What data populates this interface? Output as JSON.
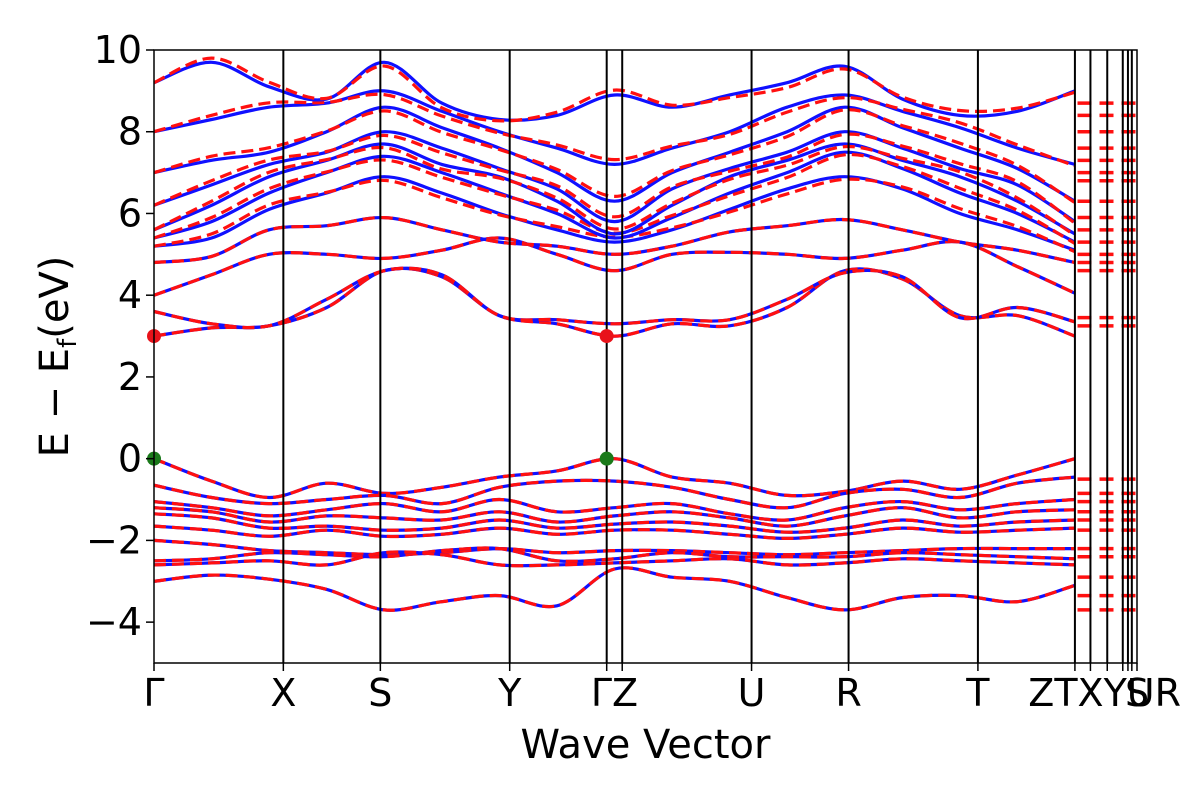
{
  "chart_data": {
    "type": "line",
    "title": "",
    "xlabel": "Wave Vector",
    "ylabel": "E − E",
    "ylabel_sub": "f",
    "ylabel_unit": "(eV)",
    "ylim": [
      -5,
      10
    ],
    "yticks": [
      -4,
      -2,
      0,
      2,
      4,
      6,
      8,
      10
    ],
    "ytick_labels": [
      "−4",
      "−2",
      "0",
      "2",
      "4",
      "6",
      "8",
      "10"
    ],
    "xlim": [
      0,
      7.6
    ],
    "kpoints": [
      {
        "label": "Γ",
        "x": 0.0
      },
      {
        "label": "X",
        "x": 1.0
      },
      {
        "label": "S",
        "x": 1.75
      },
      {
        "label": "Y",
        "x": 2.75
      },
      {
        "label": "Γ",
        "x": 3.5
      },
      {
        "label": "Z",
        "x": 3.62
      },
      {
        "label": "U",
        "x": 4.62
      },
      {
        "label": "R",
        "x": 5.37
      },
      {
        "label": "T",
        "x": 6.37
      },
      {
        "label": "Z",
        "x": 7.12
      },
      {
        "label": "T",
        "x": 7.24
      },
      {
        "label": "X",
        "x": 7.37
      },
      {
        "label": "Y",
        "x": 7.49
      },
      {
        "label": "U",
        "x": 7.53
      },
      {
        "label": "R",
        "x": 7.56
      },
      {
        "label": "S",
        "x": 7.6
      }
    ],
    "tick_label_strings": [
      "Γ",
      "X",
      "S",
      "Y",
      "ΓZ",
      "U",
      "R",
      "T",
      "ZTXYUR",
      "S"
    ],
    "tick_label_positions": [
      0.0,
      1.0,
      1.75,
      2.75,
      3.56,
      4.62,
      5.37,
      6.37,
      7.35,
      7.6
    ],
    "special_points": [
      {
        "kind": "cbm",
        "color": "#e8121a",
        "x": 0.0,
        "y": 3.0
      },
      {
        "kind": "cbm",
        "color": "#e8121a",
        "x": 3.5,
        "y": 3.0
      },
      {
        "kind": "vbm",
        "color": "#1a7a1a",
        "x": 0.0,
        "y": 0.0
      },
      {
        "kind": "vbm",
        "color": "#1a7a1a",
        "x": 3.5,
        "y": 0.0
      }
    ],
    "series": [
      {
        "style": "blue-solid",
        "color": "#1010ff"
      },
      {
        "style": "red-dashed",
        "color": "#ff1010"
      }
    ],
    "band_groups": {
      "valence": [
        [
          0.0,
          -0.55,
          -0.95,
          -0.6,
          -0.85,
          -0.7,
          -0.45,
          -0.3,
          0.0,
          -0.45,
          -0.6,
          -0.9,
          -0.8,
          -0.55,
          -0.75,
          -0.4,
          0.0
        ],
        [
          -0.65,
          -0.95,
          -1.1,
          -1.0,
          -0.9,
          -1.1,
          -0.7,
          -0.55,
          -0.55,
          -0.7,
          -1.0,
          -1.2,
          -0.85,
          -0.75,
          -0.95,
          -0.6,
          -0.45
        ],
        [
          -1.05,
          -1.2,
          -1.4,
          -1.25,
          -1.1,
          -1.3,
          -1.0,
          -1.3,
          -1.2,
          -1.1,
          -1.35,
          -1.5,
          -1.2,
          -1.05,
          -1.25,
          -1.1,
          -1.0
        ],
        [
          -1.2,
          -1.3,
          -1.55,
          -1.4,
          -1.45,
          -1.5,
          -1.3,
          -1.55,
          -1.4,
          -1.3,
          -1.45,
          -1.65,
          -1.4,
          -1.2,
          -1.45,
          -1.3,
          -1.25
        ],
        [
          -1.35,
          -1.45,
          -1.7,
          -1.65,
          -1.75,
          -1.7,
          -1.5,
          -1.7,
          -1.6,
          -1.55,
          -1.65,
          -1.8,
          -1.7,
          -1.5,
          -1.65,
          -1.55,
          -1.5
        ],
        [
          -1.65,
          -1.75,
          -1.9,
          -1.75,
          -1.9,
          -1.85,
          -1.7,
          -1.85,
          -1.75,
          -1.75,
          -1.85,
          -1.95,
          -1.85,
          -1.7,
          -1.8,
          -1.75,
          -1.7
        ],
        [
          -2.0,
          -2.1,
          -2.25,
          -2.3,
          -2.35,
          -2.3,
          -2.2,
          -2.3,
          -2.25,
          -2.25,
          -2.3,
          -2.35,
          -2.3,
          -2.25,
          -2.2,
          -2.2,
          -2.2
        ],
        [
          -2.5,
          -2.45,
          -2.3,
          -2.35,
          -2.4,
          -2.25,
          -2.2,
          -2.5,
          -2.45,
          -2.3,
          -2.4,
          -2.4,
          -2.4,
          -2.3,
          -2.35,
          -2.4,
          -2.45
        ],
        [
          -2.6,
          -2.55,
          -2.5,
          -2.6,
          -2.3,
          -2.35,
          -2.6,
          -2.6,
          -2.55,
          -2.5,
          -2.45,
          -2.6,
          -2.55,
          -2.45,
          -2.5,
          -2.55,
          -2.6
        ],
        [
          -3.0,
          -2.85,
          -2.95,
          -3.2,
          -3.7,
          -3.5,
          -3.35,
          -3.6,
          -2.7,
          -2.9,
          -3.0,
          -3.4,
          -3.7,
          -3.4,
          -3.35,
          -3.5,
          -3.1
        ]
      ],
      "conduction": [
        [
          3.0,
          3.2,
          3.25,
          3.7,
          4.6,
          4.45,
          3.5,
          3.3,
          3.0,
          3.3,
          3.25,
          3.7,
          4.6,
          4.4,
          3.5,
          3.5,
          3.0
        ],
        [
          3.6,
          3.3,
          3.25,
          3.9,
          4.6,
          4.5,
          3.5,
          3.4,
          3.3,
          3.4,
          3.4,
          3.9,
          4.55,
          4.45,
          3.45,
          3.7,
          3.35
        ],
        [
          4.0,
          4.5,
          5.0,
          5.0,
          4.9,
          5.1,
          5.4,
          5.0,
          4.6,
          5.0,
          5.05,
          5.0,
          4.9,
          5.1,
          5.3,
          4.7,
          4.05
        ],
        [
          4.8,
          4.95,
          5.6,
          5.7,
          5.9,
          5.6,
          5.3,
          5.2,
          5.0,
          5.2,
          5.55,
          5.7,
          5.85,
          5.6,
          5.3,
          5.1,
          4.8
        ],
        [
          5.2,
          5.4,
          6.1,
          6.5,
          6.9,
          6.5,
          6.0,
          5.6,
          5.3,
          5.6,
          6.1,
          6.6,
          6.9,
          6.6,
          6.0,
          5.6,
          5.1
        ],
        [
          5.4,
          5.8,
          6.5,
          7.0,
          7.4,
          7.0,
          6.5,
          6.0,
          5.4,
          5.9,
          6.5,
          7.0,
          7.5,
          7.1,
          6.5,
          6.0,
          5.3
        ],
        [
          5.6,
          6.2,
          6.9,
          7.3,
          7.7,
          7.2,
          6.9,
          6.3,
          5.5,
          6.2,
          6.9,
          7.3,
          7.7,
          7.3,
          6.9,
          6.3,
          5.5
        ],
        [
          6.2,
          6.7,
          7.2,
          7.5,
          8.0,
          7.6,
          7.1,
          6.6,
          5.8,
          6.6,
          7.1,
          7.5,
          8.0,
          7.6,
          7.1,
          6.7,
          5.8
        ],
        [
          7.0,
          7.3,
          7.5,
          8.0,
          8.6,
          8.1,
          7.6,
          7.0,
          6.3,
          7.0,
          7.5,
          8.0,
          8.6,
          8.1,
          7.6,
          7.1,
          6.3
        ],
        [
          8.0,
          8.3,
          8.6,
          8.7,
          9.0,
          8.5,
          8.0,
          7.6,
          7.2,
          7.6,
          8.0,
          8.6,
          8.9,
          8.5,
          8.1,
          7.6,
          7.2
        ],
        [
          9.2,
          9.7,
          9.1,
          8.8,
          9.7,
          8.7,
          8.3,
          8.4,
          8.9,
          8.6,
          8.9,
          9.2,
          9.6,
          8.8,
          8.4,
          8.5,
          9.0
        ]
      ]
    },
    "x_sample_fractions": [
      0.0,
      0.0625,
      0.125,
      0.1875,
      0.25,
      0.3125,
      0.375,
      0.4375,
      0.5,
      0.5625,
      0.625,
      0.6875,
      0.75,
      0.8125,
      0.875,
      0.9375,
      1.0
    ],
    "grid": false,
    "legend": "none"
  }
}
